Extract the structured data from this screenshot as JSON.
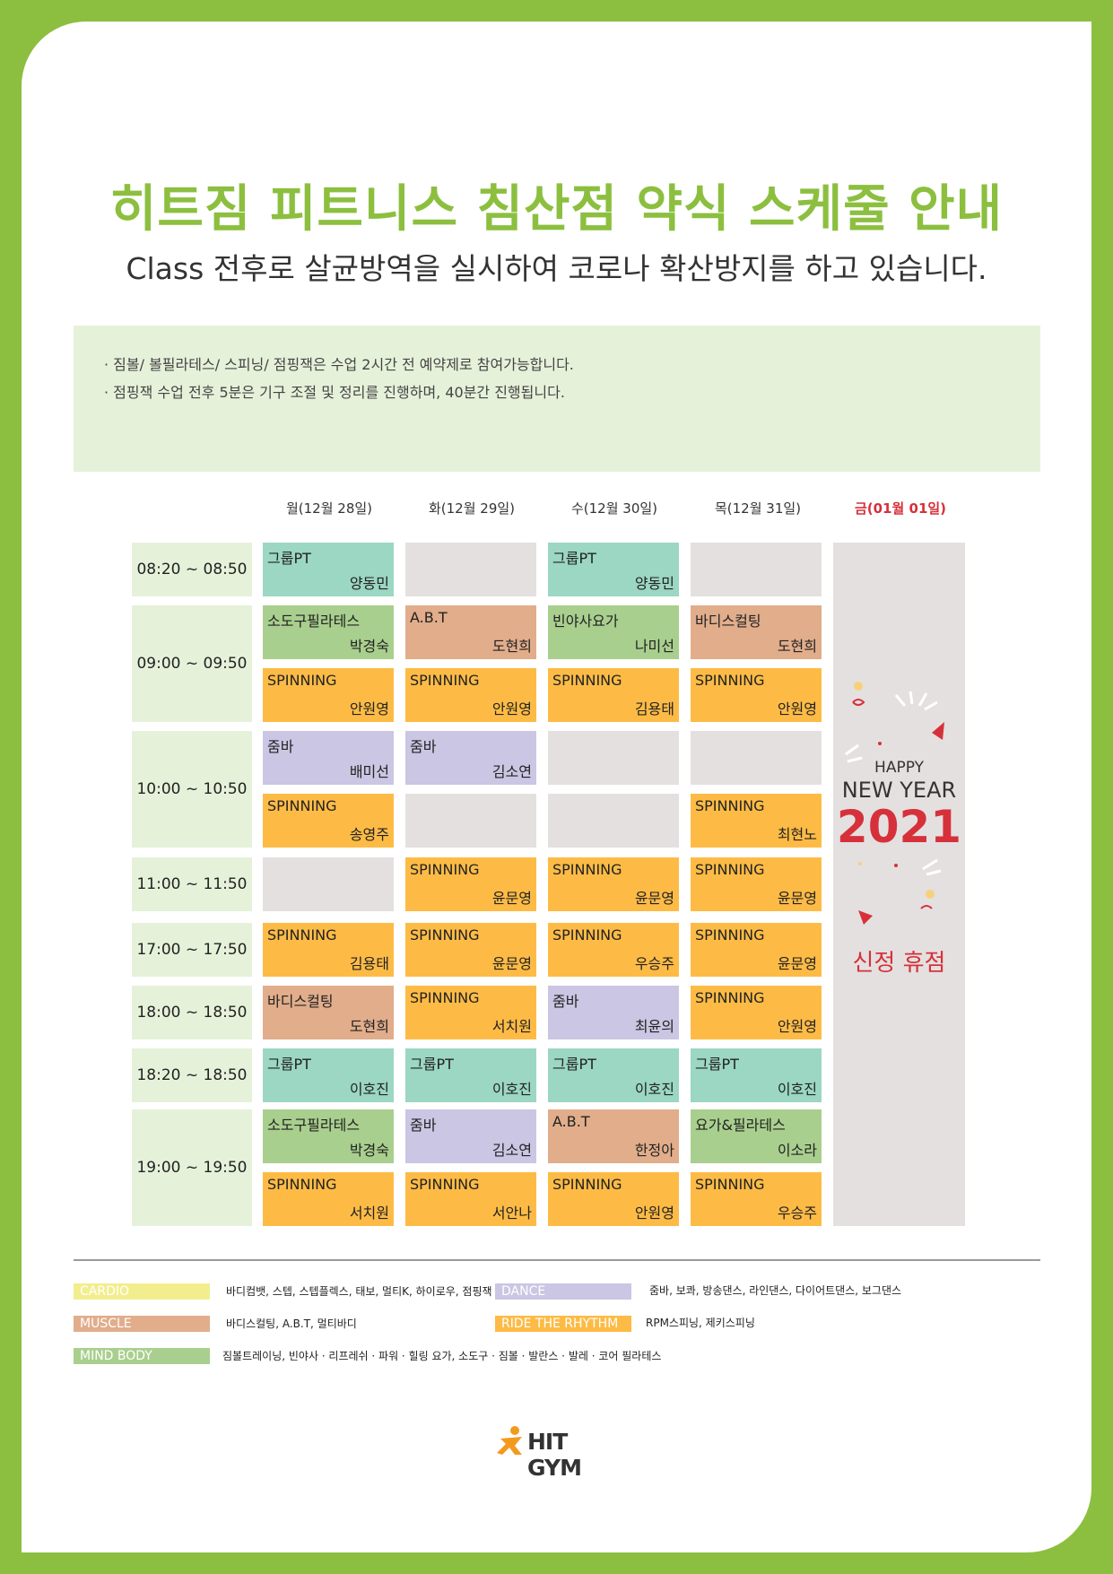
{
  "header": {
    "title": "히트짐 피트니스 침산점 약식 스케줄 안내",
    "subtitle": "Class 전후로 살균방역을 실시하여 코로나 확산방지를 하고 있습니다."
  },
  "notice": [
    "· 짐볼/ 볼필라테스/ 스피닝/ 점핑잭은 수업 2시간 전 예약제로 참여가능합니다.",
    "· 점핑잭 수업 전후 5분은 기구 조절 및 정리를 진행하며, 40분간 진행됩니다."
  ],
  "days": [
    "월(12월 28일)",
    "화(12월 29일)",
    "수(12월 30일)",
    "목(12월 31일)",
    "금(01월 01일)"
  ],
  "times": [
    "08:20 ~ 08:50",
    "09:00 ~ 09:50",
    "10:00 ~ 10:50",
    "11:00 ~ 11:50",
    "17:00 ~ 17:50",
    "18:00 ~ 18:50",
    "18:20 ~ 18:50",
    "19:00 ~ 19:50"
  ],
  "colors": {
    "frame": "#8cbf3f",
    "title": "#8cbf3f",
    "holiday": "#d6313b",
    "group_pt": "#9bd7c2",
    "mind_body": "#a9cf8e",
    "muscle": "#e1ad8b",
    "ride": "#fdbb46",
    "dance": "#cbc6e3",
    "empty": "#e4e0e0"
  },
  "schedule": {
    "mon": [
      {
        "name": "그룹PT",
        "trainer": "양동민"
      },
      {
        "name": "소도구필라테스",
        "trainer": "박경숙"
      },
      {
        "name": "SPINNING",
        "trainer": "안원영"
      },
      {
        "name": "줌바",
        "trainer": "배미선"
      },
      {
        "name": "SPINNING",
        "trainer": "송영주"
      },
      {
        "name": "",
        "trainer": ""
      },
      {
        "name": "SPINNING",
        "trainer": "김용태"
      },
      {
        "name": "바디스컬팅",
        "trainer": "도현희"
      },
      {
        "name": "그룹PT",
        "trainer": "이호진"
      },
      {
        "name": "소도구필라테스",
        "trainer": "박경숙"
      },
      {
        "name": "SPINNING",
        "trainer": "서치원"
      }
    ],
    "tue": [
      {
        "name": "",
        "trainer": ""
      },
      {
        "name": "A.B.T",
        "trainer": "도현희"
      },
      {
        "name": "SPINNING",
        "trainer": "안원영"
      },
      {
        "name": "줌바",
        "trainer": "김소연"
      },
      {
        "name": "",
        "trainer": ""
      },
      {
        "name": "SPINNING",
        "trainer": "윤문영"
      },
      {
        "name": "SPINNING",
        "trainer": "윤문영"
      },
      {
        "name": "SPINNING",
        "trainer": "서치원"
      },
      {
        "name": "그룹PT",
        "trainer": "이호진"
      },
      {
        "name": "줌바",
        "trainer": "김소연"
      },
      {
        "name": "SPINNING",
        "trainer": "서안나"
      }
    ],
    "wed": [
      {
        "name": "그룹PT",
        "trainer": "양동민"
      },
      {
        "name": "빈야사요가",
        "trainer": "나미선"
      },
      {
        "name": "SPINNING",
        "trainer": "김용태"
      },
      {
        "name": "",
        "trainer": ""
      },
      {
        "name": "",
        "trainer": ""
      },
      {
        "name": "SPINNING",
        "trainer": "윤문영"
      },
      {
        "name": "SPINNING",
        "trainer": "우승주"
      },
      {
        "name": "줌바",
        "trainer": "최윤의"
      },
      {
        "name": "그룹PT",
        "trainer": "이호진"
      },
      {
        "name": "A.B.T",
        "trainer": "한정아"
      },
      {
        "name": "SPINNING",
        "trainer": "안원영"
      }
    ],
    "thu": [
      {
        "name": "",
        "trainer": ""
      },
      {
        "name": "바디스컬팅",
        "trainer": "도현희"
      },
      {
        "name": "SPINNING",
        "trainer": "안원영"
      },
      {
        "name": "",
        "trainer": ""
      },
      {
        "name": "SPINNING",
        "trainer": "최현노"
      },
      {
        "name": "SPINNING",
        "trainer": "윤문영"
      },
      {
        "name": "SPINNING",
        "trainer": "윤문영"
      },
      {
        "name": "SPINNING",
        "trainer": "안원영"
      },
      {
        "name": "그룹PT",
        "trainer": "이호진"
      },
      {
        "name": "요가&필라테스",
        "trainer": "이소라"
      },
      {
        "name": "SPINNING",
        "trainer": "우승주"
      }
    ]
  },
  "friday": {
    "happy": "HAPPY",
    "new_year": "NEW YEAR",
    "year": "2021",
    "closed": "신정 휴점"
  },
  "legend": [
    {
      "tag": "CARDIO",
      "desc": "바디컴뱃, 스텝, 스텝플렉스, 태보, 멀티K, 하이로우, 점핑잭",
      "color": "#f2ee8e"
    },
    {
      "tag": "DANCE",
      "desc": "줌바, 보콰, 방송댄스, 라인댄스, 다이어트댄스, 보그댄스",
      "color": "#cbc6e3"
    },
    {
      "tag": "MUSCLE",
      "desc": "바디스컬팅, A.B.T, 멀티바디",
      "color": "#e1ad8b"
    },
    {
      "tag": "RIDE THE RHYTHM",
      "desc": "RPM스피닝, 제키스피닝",
      "color": "#fdbb46"
    },
    {
      "tag": "MIND BODY",
      "desc": "짐볼트레이닝, 빈야사 · 리프레쉬 · 파워 · 힐링 요가, 소도구 · 짐볼 · 발란스 · 발레 · 코어 필라테스",
      "color": "#a9cf8e"
    }
  ],
  "logo": {
    "text": "HIT GYM",
    "icon": "runner-icon"
  }
}
